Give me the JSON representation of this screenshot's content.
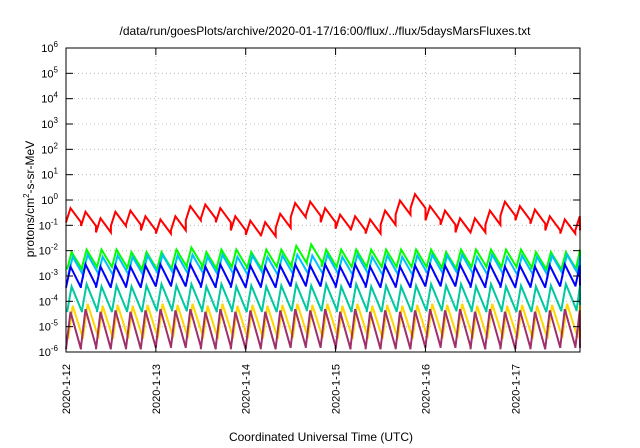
{
  "chart_data": {
    "type": "line",
    "title": "/data/run/goesPlots/archive/2020-01-17/16:00/flux/../flux/5daysMarsFluxes.txt",
    "xlabel": "Coordinated Universal Time (UTC)",
    "ylabel_parts": {
      "pre": "protons/cm",
      "sup": "2",
      "post": "-s-sr-MeV"
    },
    "y_scale": "log",
    "ylim": [
      1e-06,
      1000000.0
    ],
    "y_ticks": [
      {
        "base": "10",
        "exp": "6"
      },
      {
        "base": "10",
        "exp": "5"
      },
      {
        "base": "10",
        "exp": "4"
      },
      {
        "base": "10",
        "exp": "3"
      },
      {
        "base": "10",
        "exp": "2"
      },
      {
        "base": "10",
        "exp": "1"
      },
      {
        "base": "10",
        "exp": "0"
      },
      {
        "base": "10",
        "exp": "-1"
      },
      {
        "base": "10",
        "exp": "-2"
      },
      {
        "base": "10",
        "exp": "-3"
      },
      {
        "base": "10",
        "exp": "-4"
      },
      {
        "base": "10",
        "exp": "-5"
      },
      {
        "base": "10",
        "exp": "-6"
      }
    ],
    "x_ticks": [
      "2020-1-12",
      "2020-1-13",
      "2020-1-14",
      "2020-1-15",
      "2020-1-16",
      "2020-1-17"
    ],
    "x_tick_days": [
      12,
      13,
      14,
      15,
      16,
      17
    ],
    "xlim_days": [
      12,
      17.72
    ],
    "grid": true,
    "sawtooth_period_days": 0.1667,
    "series": [
      {
        "color": "#ff0000",
        "levels": [
          0.25,
          0.18,
          0.12,
          0.1,
          0.15,
          0.18,
          0.2,
          0.15,
          0.12,
          0.1,
          0.09,
          0.12,
          0.2,
          0.3,
          0.4,
          0.35,
          0.25,
          0.18,
          0.12,
          0.1,
          0.08,
          0.07,
          0.09,
          0.15,
          0.3,
          0.4,
          0.45,
          0.35,
          0.25,
          0.18,
          0.14,
          0.12,
          0.1,
          0.09,
          0.1,
          0.2,
          0.5,
          0.9,
          0.9,
          0.5,
          0.3,
          0.2,
          0.14,
          0.1,
          0.09,
          0.1,
          0.2,
          0.35,
          0.45,
          0.4,
          0.3,
          0.22,
          0.16,
          0.12,
          0.1,
          0.09,
          0.12,
          0.3,
          0.4,
          0.5
        ],
        "amp": 1.9
      },
      {
        "color": "#00ff00",
        "levels": [
          0.004,
          0.005,
          0.006,
          0.005,
          0.004,
          0.005,
          0.004,
          0.005,
          0.004,
          0.005,
          0.004,
          0.005,
          0.005,
          0.006,
          0.005,
          0.004,
          0.005,
          0.004,
          0.005,
          0.005,
          0.004,
          0.005,
          0.004,
          0.005,
          0.006,
          0.007,
          0.008,
          0.006,
          0.005,
          0.004,
          0.005,
          0.005,
          0.004,
          0.005,
          0.004,
          0.005,
          0.005,
          0.006,
          0.005,
          0.004,
          0.005,
          0.004,
          0.005,
          0.005,
          0.004,
          0.005,
          0.005,
          0.006,
          0.005,
          0.004,
          0.005,
          0.004,
          0.005,
          0.004,
          0.005,
          0.004,
          0.005,
          0.004,
          0.004,
          0.005
        ],
        "amp": 2.2
      },
      {
        "color": "#00bfff",
        "levels": [
          0.0025,
          0.003,
          0.0028,
          0.0025,
          0.003,
          0.0028,
          0.0025,
          0.003,
          0.0028,
          0.0025,
          0.003,
          0.0028,
          0.0025,
          0.003,
          0.0028,
          0.0025,
          0.003,
          0.0028,
          0.0025,
          0.003,
          0.0028,
          0.0025,
          0.003,
          0.0028,
          0.0025,
          0.003,
          0.0028,
          0.0025,
          0.003,
          0.0028,
          0.0025,
          0.003,
          0.0028,
          0.0025,
          0.003,
          0.0028,
          0.0025,
          0.003,
          0.0028,
          0.0025,
          0.003,
          0.0028,
          0.0025,
          0.003,
          0.0028,
          0.0025,
          0.003,
          0.0028,
          0.0025,
          0.003,
          0.0028,
          0.0025,
          0.003,
          0.0028,
          0.0025,
          0.003,
          0.0028,
          0.0025,
          0.003,
          0.0028
        ],
        "amp": 2.3
      },
      {
        "color": "#0000ff",
        "levels": [
          0.0009,
          0.0011,
          0.001,
          0.0009,
          0.0011,
          0.001,
          0.0009,
          0.0011,
          0.001,
          0.0009,
          0.0011,
          0.001,
          0.0009,
          0.0011,
          0.001,
          0.0009,
          0.0011,
          0.001,
          0.0009,
          0.0011,
          0.001,
          0.0009,
          0.0011,
          0.001,
          0.0009,
          0.0011,
          0.001,
          0.0009,
          0.0011,
          0.001,
          0.0009,
          0.0011,
          0.001,
          0.0009,
          0.0011,
          0.001,
          0.0009,
          0.0011,
          0.001,
          0.0009,
          0.0011,
          0.001,
          0.0009,
          0.0011,
          0.001,
          0.0009,
          0.0011,
          0.001,
          0.0009,
          0.0011,
          0.001,
          0.0009,
          0.0011,
          0.001,
          0.0009,
          0.0011,
          0.001,
          0.0009,
          0.0011,
          0.001
        ],
        "amp": 2.6
      },
      {
        "color": "#00c8a0",
        "levels": [
          0.00012,
          0.00015,
          0.00013,
          0.00012,
          0.00015,
          0.00013,
          0.00012,
          0.00015,
          0.00013,
          0.00012,
          0.00015,
          0.00013,
          0.00012,
          0.00015,
          0.00013,
          0.00012,
          0.00015,
          0.00013,
          0.00012,
          0.00015,
          0.00013,
          0.00012,
          0.00015,
          0.00013,
          0.00012,
          0.00015,
          0.00013,
          0.00012,
          0.00015,
          0.00013,
          0.00012,
          0.00015,
          0.00013,
          0.00012,
          0.00015,
          0.00013,
          0.00012,
          0.00015,
          0.00013,
          0.00012,
          0.00015,
          0.00013,
          0.00012,
          0.00015,
          0.00013,
          0.00012,
          0.00015,
          0.00013,
          0.00012,
          0.00015,
          0.00013,
          0.00012,
          0.00015,
          0.00013,
          0.00012,
          0.00015,
          0.00013,
          0.00012,
          0.00015,
          0.00013
        ],
        "amp": 3.2
      },
      {
        "color": "#ffd700",
        "levels": [
          1.5e-05,
          1.8e-05,
          1.6e-05,
          1.5e-05,
          1.8e-05,
          1.6e-05,
          1.5e-05,
          1.8e-05,
          1.6e-05,
          1.5e-05,
          1.8e-05,
          1.6e-05,
          1.5e-05,
          1.8e-05,
          1.6e-05,
          1.5e-05,
          1.8e-05,
          1.6e-05,
          1.5e-05,
          1.8e-05,
          1.6e-05,
          1.5e-05,
          1.8e-05,
          1.6e-05,
          1.5e-05,
          1.8e-05,
          1.6e-05,
          1.5e-05,
          1.8e-05,
          1.6e-05,
          1.5e-05,
          1.8e-05,
          1.6e-05,
          1.5e-05,
          1.8e-05,
          1.6e-05,
          1.5e-05,
          1.8e-05,
          1.6e-05,
          1.5e-05,
          1.8e-05,
          1.6e-05,
          1.5e-05,
          1.8e-05,
          1.6e-05,
          1.5e-05,
          1.8e-05,
          1.6e-05,
          1.5e-05,
          1.8e-05,
          1.6e-05,
          1.5e-05,
          1.8e-05,
          1.6e-05,
          1.5e-05,
          1.8e-05,
          1.6e-05,
          1.5e-05,
          1.8e-05,
          1.6e-05
        ],
        "amp": 4.5
      },
      {
        "color": "#a0306a",
        "levels": [
          7e-06,
          9e-06,
          8e-06,
          7e-06,
          9e-06,
          8e-06,
          7e-06,
          9e-06,
          8e-06,
          7e-06,
          9e-06,
          8e-06,
          7e-06,
          9e-06,
          8e-06,
          7e-06,
          9e-06,
          8e-06,
          7e-06,
          9e-06,
          8e-06,
          7e-06,
          9e-06,
          8e-06,
          7e-06,
          9e-06,
          8e-06,
          7e-06,
          9e-06,
          8e-06,
          7e-06,
          9e-06,
          8e-06,
          7e-06,
          9e-06,
          8e-06,
          7e-06,
          9e-06,
          8e-06,
          7e-06,
          9e-06,
          8e-06,
          7e-06,
          9e-06,
          8e-06,
          7e-06,
          9e-06,
          8e-06,
          7e-06,
          9e-06,
          8e-06,
          7e-06,
          9e-06,
          8e-06,
          7e-06,
          9e-06,
          8e-06,
          7e-06,
          9e-06,
          8e-06
        ],
        "amp": 5.5
      }
    ]
  }
}
